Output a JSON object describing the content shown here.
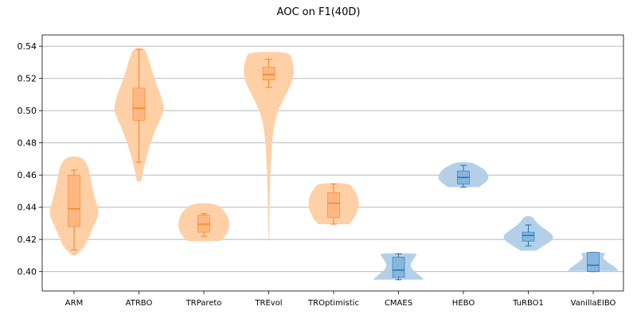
{
  "chart_data": {
    "type": "violin",
    "title": "AOC on F1(40D)",
    "xlabel": "",
    "ylabel": "",
    "ylim": [
      0.388,
      0.547
    ],
    "yticks": [
      0.4,
      0.42,
      0.44,
      0.46,
      0.48,
      0.5,
      0.52,
      0.54
    ],
    "ytick_labels": [
      "0.40",
      "0.42",
      "0.44",
      "0.46",
      "0.48",
      "0.50",
      "0.52",
      "0.54"
    ],
    "grid": "horizontal",
    "colors": {
      "orange_fill": "#ffcfa6",
      "orange_box": "#ffb37a",
      "orange_line": "#f58220",
      "blue_fill": "#b3d0e8",
      "blue_box": "#7fb2d9",
      "blue_line": "#1f6fb2"
    },
    "categories": [
      "ARM",
      "ATRBO",
      "TRPareto",
      "TREvol",
      "TROptimistic",
      "CMAES",
      "HEBO",
      "TuRBO1",
      "VanillaEIBO"
    ],
    "series": [
      {
        "category": "ARM",
        "color": "orange",
        "min": 0.4135,
        "q1": 0.428,
        "median": 0.439,
        "q3": 0.46,
        "max": 0.463,
        "violin_min": 0.41,
        "violin_max": 0.4715,
        "profile": [
          [
            0.41,
            0.05
          ],
          [
            0.414,
            0.35
          ],
          [
            0.42,
            0.55
          ],
          [
            0.428,
            0.75
          ],
          [
            0.436,
            1.0
          ],
          [
            0.444,
            0.85
          ],
          [
            0.452,
            0.72
          ],
          [
            0.46,
            0.62
          ],
          [
            0.466,
            0.55
          ],
          [
            0.4715,
            0.3
          ]
        ]
      },
      {
        "category": "ATRBO",
        "color": "orange",
        "min": 0.468,
        "q1": 0.494,
        "median": 0.5015,
        "q3": 0.514,
        "max": 0.538,
        "violin_min": 0.456,
        "violin_max": 0.539,
        "profile": [
          [
            0.456,
            0.08
          ],
          [
            0.462,
            0.15
          ],
          [
            0.47,
            0.28
          ],
          [
            0.48,
            0.45
          ],
          [
            0.49,
            0.7
          ],
          [
            0.5,
            1.0
          ],
          [
            0.508,
            0.9
          ],
          [
            0.516,
            0.7
          ],
          [
            0.524,
            0.52
          ],
          [
            0.532,
            0.38
          ],
          [
            0.539,
            0.22
          ]
        ]
      },
      {
        "category": "TRPareto",
        "color": "orange",
        "min": 0.422,
        "q1": 0.4245,
        "median": 0.4295,
        "q3": 0.435,
        "max": 0.436,
        "violin_min": 0.419,
        "violin_max": 0.4425,
        "profile": [
          [
            0.419,
            0.6
          ],
          [
            0.422,
            0.85
          ],
          [
            0.426,
            0.98
          ],
          [
            0.43,
            1.0
          ],
          [
            0.434,
            0.95
          ],
          [
            0.438,
            0.8
          ],
          [
            0.4425,
            0.45
          ]
        ]
      },
      {
        "category": "TREvol",
        "color": "orange",
        "min": 0.5145,
        "q1": 0.519,
        "median": 0.5225,
        "q3": 0.527,
        "max": 0.532,
        "violin_min": 0.419,
        "violin_max": 0.5365,
        "profile": [
          [
            0.419,
            0.01
          ],
          [
            0.44,
            0.03
          ],
          [
            0.46,
            0.06
          ],
          [
            0.48,
            0.12
          ],
          [
            0.495,
            0.25
          ],
          [
            0.505,
            0.5
          ],
          [
            0.513,
            0.78
          ],
          [
            0.52,
            0.95
          ],
          [
            0.526,
            1.0
          ],
          [
            0.532,
            0.9
          ],
          [
            0.5365,
            0.8
          ]
        ]
      },
      {
        "category": "TROptimistic",
        "color": "orange",
        "min": 0.4295,
        "q1": 0.4335,
        "median": 0.4425,
        "q3": 0.449,
        "max": 0.4545,
        "violin_min": 0.4295,
        "violin_max": 0.455,
        "profile": [
          [
            0.4295,
            0.6
          ],
          [
            0.433,
            0.8
          ],
          [
            0.438,
            0.95
          ],
          [
            0.443,
            1.0
          ],
          [
            0.448,
            0.92
          ],
          [
            0.452,
            0.75
          ],
          [
            0.455,
            0.6
          ]
        ]
      },
      {
        "category": "CMAES",
        "color": "blue",
        "min": 0.395,
        "q1": 0.3965,
        "median": 0.401,
        "q3": 0.409,
        "max": 0.411,
        "violin_min": 0.395,
        "violin_max": 0.4115,
        "profile": [
          [
            0.395,
            1.0
          ],
          [
            0.398,
            0.8
          ],
          [
            0.401,
            0.55
          ],
          [
            0.404,
            0.45
          ],
          [
            0.407,
            0.55
          ],
          [
            0.41,
            0.7
          ],
          [
            0.4115,
            0.72
          ]
        ]
      },
      {
        "category": "HEBO",
        "color": "blue",
        "min": 0.4525,
        "q1": 0.4545,
        "median": 0.4585,
        "q3": 0.4625,
        "max": 0.466,
        "violin_min": 0.4525,
        "violin_max": 0.468,
        "profile": [
          [
            0.4525,
            0.6
          ],
          [
            0.455,
            0.85
          ],
          [
            0.458,
            1.0
          ],
          [
            0.461,
            0.95
          ],
          [
            0.464,
            0.78
          ],
          [
            0.466,
            0.55
          ],
          [
            0.468,
            0.3
          ]
        ]
      },
      {
        "category": "TuRBO1",
        "color": "blue",
        "min": 0.416,
        "q1": 0.419,
        "median": 0.4225,
        "q3": 0.4245,
        "max": 0.429,
        "violin_min": 0.413,
        "violin_max": 0.4345,
        "profile": [
          [
            0.413,
            0.3
          ],
          [
            0.416,
            0.6
          ],
          [
            0.419,
            0.9
          ],
          [
            0.422,
            1.0
          ],
          [
            0.425,
            0.8
          ],
          [
            0.428,
            0.5
          ],
          [
            0.431,
            0.3
          ],
          [
            0.4345,
            0.15
          ]
        ]
      },
      {
        "category": "VanillaEIBO",
        "color": "blue",
        "min": 0.4,
        "q1": 0.4,
        "median": 0.404,
        "q3": 0.412,
        "max": 0.412,
        "violin_min": 0.4005,
        "violin_max": 0.412,
        "profile": [
          [
            0.4005,
            1.0
          ],
          [
            0.403,
            0.85
          ],
          [
            0.406,
            0.55
          ],
          [
            0.409,
            0.35
          ],
          [
            0.412,
            0.55
          ]
        ]
      }
    ]
  }
}
